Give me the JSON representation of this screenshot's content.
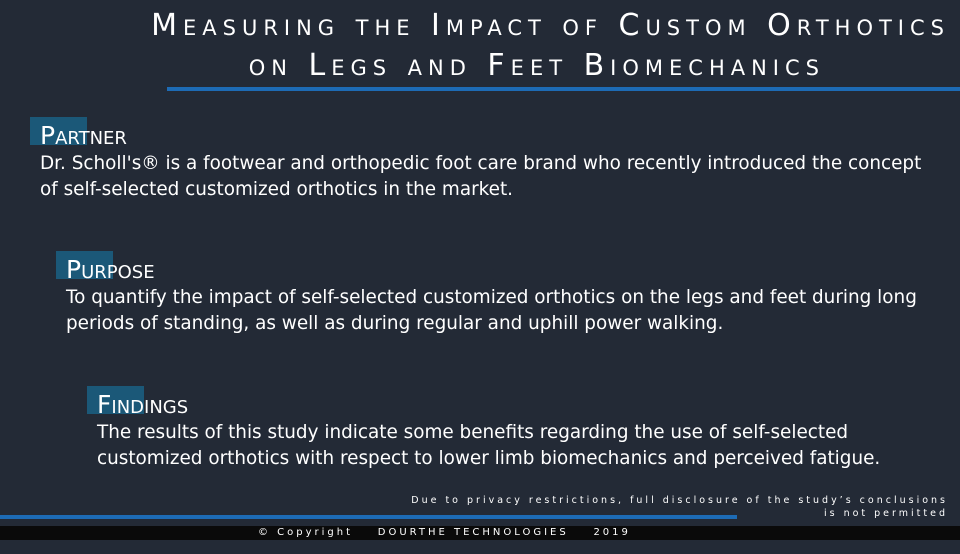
{
  "title": {
    "line1": "Measuring the Impact of Custom Orthotics",
    "line2": "on Legs and Feet Biomechanics"
  },
  "sections": [
    {
      "heading": "Partner",
      "body": "Dr. Scholl's® is a footwear and orthopedic foot care brand who recently introduced the concept of self-selected customized orthotics in the market."
    },
    {
      "heading": "Purpose",
      "body": "To quantify the impact of self-selected customized orthotics on the legs and feet during long periods of standing, as well as during regular and uphill power walking."
    },
    {
      "heading": "Findings",
      "body": "The results of this study indicate some benefits regarding the use of self-selected customized orthotics with respect to lower limb biomechanics and perceived fatigue."
    }
  ],
  "disclaimer": {
    "line1": "Due to privacy restrictions, full disclosure of the study’s conclusions",
    "line2": "is not permitted"
  },
  "footer": {
    "text": "© Copyright    DOURTHE TECHNOLOGIES    2019"
  },
  "colors": {
    "background": "#232a36",
    "accent_rule": "#1d6bb5",
    "heading_marker": "#1b5878",
    "footer_bar": "#0a0a0a"
  }
}
